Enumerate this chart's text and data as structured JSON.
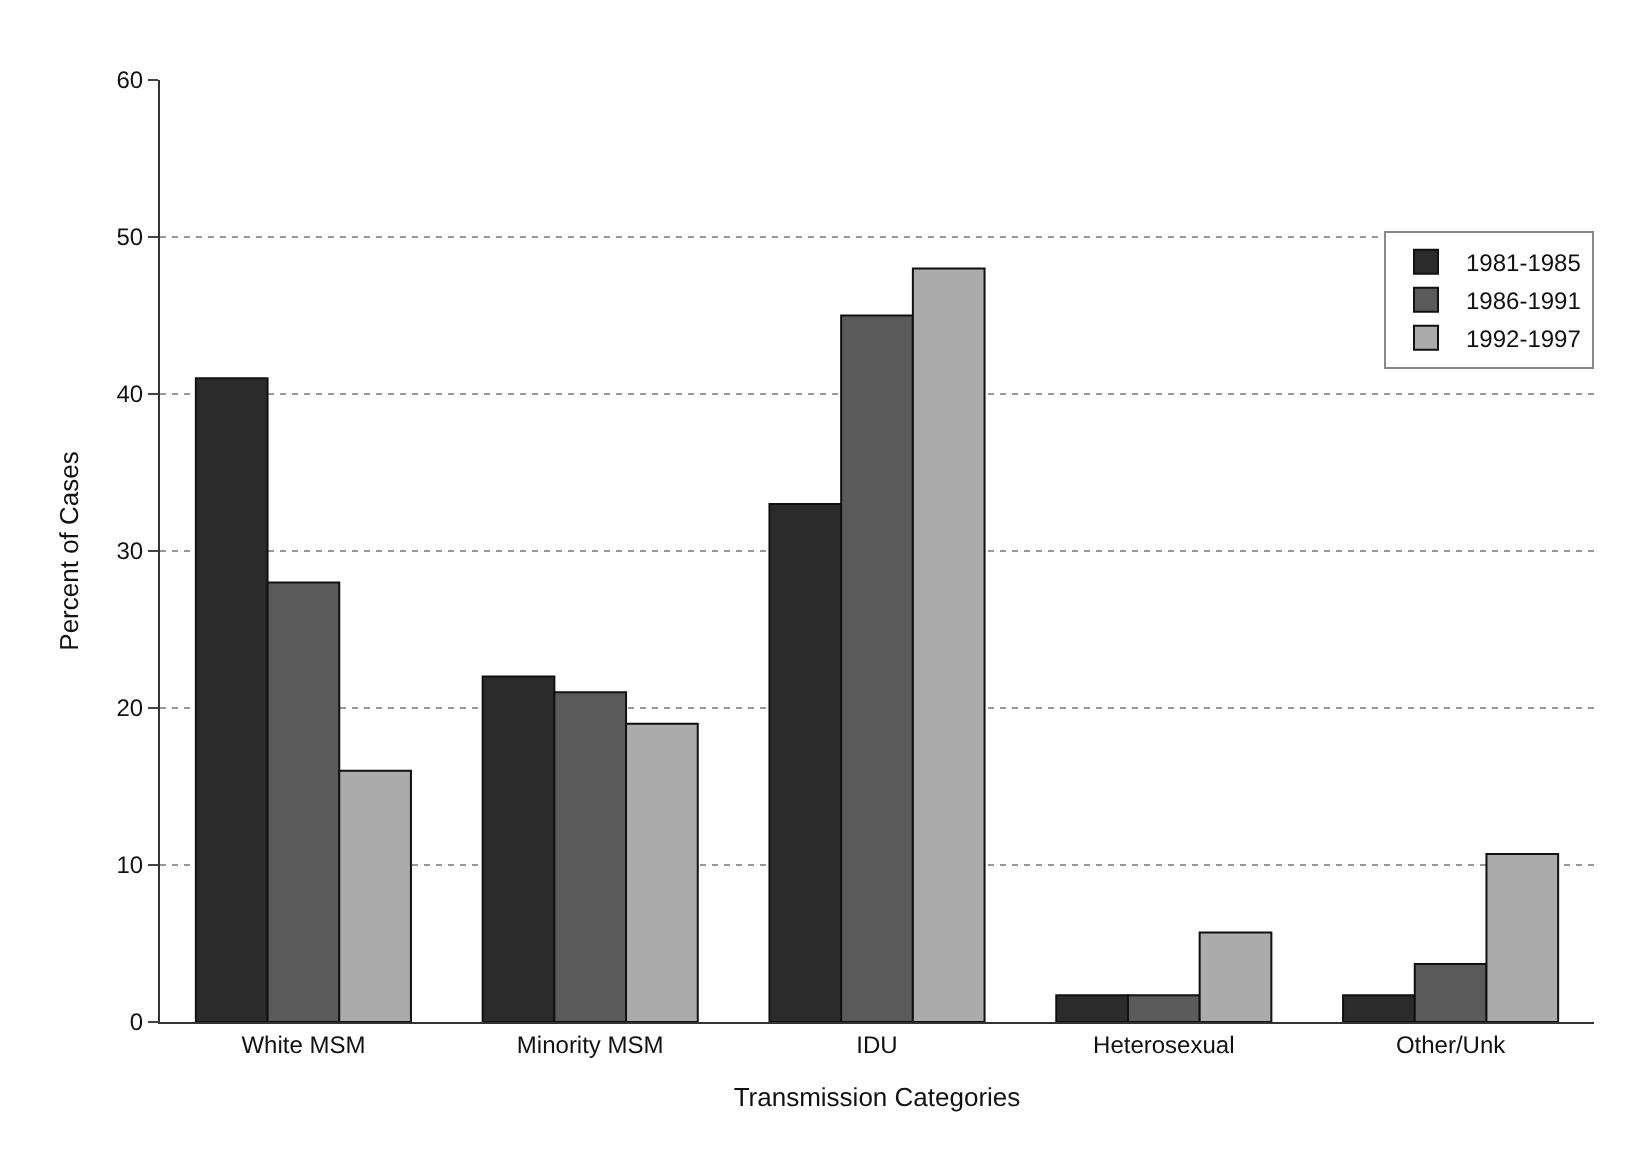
{
  "chart_data": {
    "type": "bar",
    "xlabel": "Transmission Categories",
    "ylabel": "Percent of Cases",
    "categories": [
      "White MSM",
      "Minority MSM",
      "IDU",
      "Heterosexual",
      "Other/Unk"
    ],
    "series": [
      {
        "name": "1981-1985",
        "color": "#2b2b2b",
        "values": [
          41,
          22,
          33,
          1.7,
          1.7
        ]
      },
      {
        "name": "1986-1991",
        "color": "#5a5a5a",
        "values": [
          28,
          21,
          45,
          1.7,
          3.7
        ]
      },
      {
        "name": "1992-1997",
        "color": "#ababab",
        "values": [
          16,
          19,
          48,
          5.7,
          10.7
        ]
      }
    ],
    "ylim": [
      0,
      60
    ],
    "yticks": [
      0,
      10,
      20,
      30,
      40,
      50,
      60
    ],
    "grid": "y",
    "legend": "top right"
  }
}
